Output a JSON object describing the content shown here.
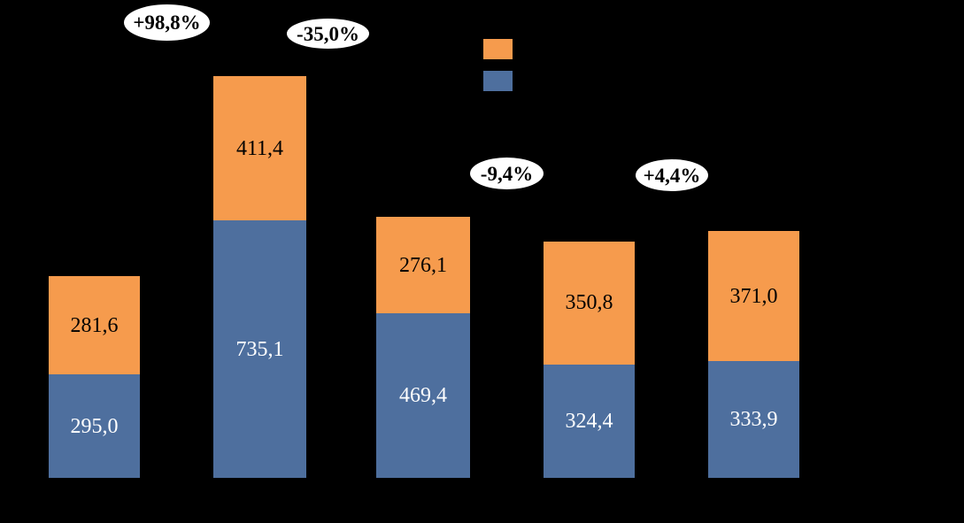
{
  "background_color": "#000000",
  "chart_data": {
    "type": "bar",
    "stacked": true,
    "orientation": "vertical",
    "axes_visible": false,
    "gridlines": false,
    "categories": [
      "",
      "",
      "",
      "",
      ""
    ],
    "series": [
      {
        "name": "blue-bottom-segment",
        "color": "#4E6F9E",
        "values": [
          295.0,
          735.1,
          469.4,
          324.4,
          333.9
        ],
        "data_labels": [
          "295,0",
          "735,1",
          "469,4",
          "324,4",
          "333,9"
        ],
        "label_color": "#FFFFFF"
      },
      {
        "name": "orange-top-segment",
        "color": "#F69B4D",
        "values": [
          281.6,
          411.4,
          276.1,
          350.8,
          371.0
        ],
        "data_labels": [
          "281,6",
          "411,4",
          "276,1",
          "350,8",
          "371,0"
        ],
        "label_color": "#000000"
      }
    ],
    "totals": [
      576.6,
      1146.5,
      745.5,
      675.2,
      704.9
    ],
    "annotations": [
      {
        "text": "+98,8%",
        "between_bars": [
          1,
          2
        ],
        "shape": "white-ellipse"
      },
      {
        "text": "-35,0%",
        "between_bars": [
          2,
          3
        ],
        "shape": "white-ellipse"
      },
      {
        "text": "-9,4%",
        "between_bars": [
          3,
          4
        ],
        "shape": "white-ellipse"
      },
      {
        "text": "+4,4%",
        "between_bars": [
          4,
          5
        ],
        "shape": "white-ellipse"
      }
    ],
    "legend": {
      "position": "top-center",
      "entries": [
        {
          "swatch_color": "#F69B4D",
          "label": ""
        },
        {
          "swatch_color": "#4E6F9E",
          "label": ""
        }
      ]
    }
  }
}
